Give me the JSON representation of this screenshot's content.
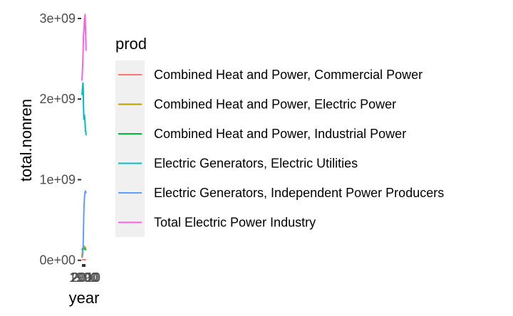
{
  "chart_data": {
    "type": "line",
    "title": "",
    "xlabel": "year",
    "ylabel": "total.nonren",
    "xlim": [
      1990,
      2017
    ],
    "ylim": [
      -20000000,
      3070000000
    ],
    "grid": false,
    "x_tick_labels": [
      "1990",
      "2000",
      "2010"
    ],
    "y_ticks": [
      {
        "value": 0,
        "label": "0e+00"
      },
      {
        "value": 1000000000,
        "label": "1e+09"
      },
      {
        "value": 2000000000,
        "label": "2e+09"
      },
      {
        "value": 3000000000,
        "label": "3e+09"
      }
    ],
    "legend": {
      "title": "prod",
      "placement": "right",
      "background": "#f0f0f0",
      "entries": [
        {
          "label": "Combined Heat and Power, Commercial Power",
          "color": "#F8766D"
        },
        {
          "label": "Combined Heat and Power, Electric Power",
          "color": "#B79F00"
        },
        {
          "label": "Combined Heat and Power, Industrial Power",
          "color": "#00BA38"
        },
        {
          "label": "Electric Generators, Electric Utilities",
          "color": "#00BFC4"
        },
        {
          "label": "Electric Generators, Independent Power Producers",
          "color": "#619CFF"
        },
        {
          "label": "Total Electric Power Industry",
          "color": "#F564E3"
        }
      ]
    },
    "series": [
      {
        "name": "Combined Heat and Power, Commercial Power",
        "color": "#F8766D",
        "x": [
          1990,
          1992,
          1994,
          1996,
          1998,
          2000,
          2002,
          2004,
          2006,
          2008,
          2010,
          2012,
          2014,
          2016
        ],
        "values": [
          5000000,
          6000000,
          7000000,
          8000000,
          9000000,
          9000000,
          8000000,
          7000000,
          7000000,
          8000000,
          8000000,
          7000000,
          7000000,
          7000000
        ]
      },
      {
        "name": "Combined Heat and Power, Electric Power",
        "color": "#B79F00",
        "x": [
          1990,
          1992,
          1994,
          1996,
          1998,
          2000,
          2002,
          2004,
          2006,
          2008,
          2010,
          2012,
          2014,
          2016
        ],
        "values": [
          40000000,
          80000000,
          120000000,
          140000000,
          150000000,
          160000000,
          170000000,
          175000000,
          170000000,
          165000000,
          160000000,
          155000000,
          150000000,
          145000000
        ]
      },
      {
        "name": "Combined Heat and Power, Industrial Power",
        "color": "#00BA38",
        "x": [
          1990,
          1992,
          1994,
          1996,
          1998,
          2000,
          2002,
          2004,
          2006,
          2008,
          2010,
          2012,
          2014,
          2016
        ],
        "values": [
          130000000,
          140000000,
          145000000,
          150000000,
          150000000,
          148000000,
          145000000,
          145000000,
          140000000,
          140000000,
          138000000,
          135000000,
          130000000,
          128000000
        ]
      },
      {
        "name": "Electric Generators, Electric Utilities",
        "color": "#00BFC4",
        "x": [
          1990,
          1992,
          1994,
          1996,
          1998,
          2000,
          2002,
          2004,
          2006,
          2008,
          2010,
          2012,
          2014,
          2016
        ],
        "values": [
          2050000000,
          2100000000,
          2150000000,
          2200000000,
          2150000000,
          1900000000,
          1750000000,
          1800000000,
          1800000000,
          1750000000,
          1700000000,
          1600000000,
          1600000000,
          1550000000
        ]
      },
      {
        "name": "Electric Generators, Independent Power Producers",
        "color": "#619CFF",
        "x": [
          1990,
          1992,
          1994,
          1996,
          1998,
          2000,
          2002,
          2004,
          2006,
          2008,
          2010,
          2012,
          2014,
          2016
        ],
        "values": [
          30000000,
          40000000,
          60000000,
          100000000,
          200000000,
          400000000,
          600000000,
          700000000,
          780000000,
          820000000,
          850000000,
          860000000,
          850000000,
          830000000
        ]
      },
      {
        "name": "Total Electric Power Industry",
        "color": "#F564E3",
        "x": [
          1990,
          1992,
          1994,
          1996,
          1998,
          2000,
          2002,
          2004,
          2006,
          2008,
          2010,
          2012,
          2014,
          2016
        ],
        "values": [
          2230000000,
          2300000000,
          2400000000,
          2500000000,
          2650000000,
          2800000000,
          2850000000,
          2900000000,
          3000000000,
          3000000000,
          3050000000,
          2900000000,
          2750000000,
          2600000000
        ]
      }
    ]
  }
}
